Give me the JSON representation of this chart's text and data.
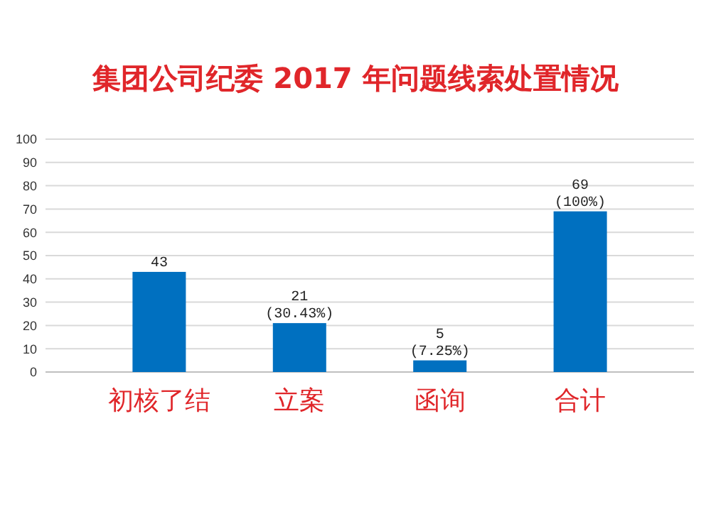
{
  "chart_data": {
    "type": "bar",
    "title": "集团公司纪委 2017 年问题线索处置情况",
    "categories": [
      "初核了结",
      "立案",
      "函询",
      "合计"
    ],
    "values": [
      43,
      21,
      5,
      69
    ],
    "value_labels": [
      "43",
      "21 (30.43%)",
      "5 (7.25%)",
      "69 (100%)"
    ],
    "color": "#0070c0",
    "ylim": [
      0,
      100
    ],
    "yticks": [
      0,
      10,
      20,
      30,
      40,
      50,
      60,
      70,
      80,
      90,
      100
    ],
    "grid": "y"
  }
}
